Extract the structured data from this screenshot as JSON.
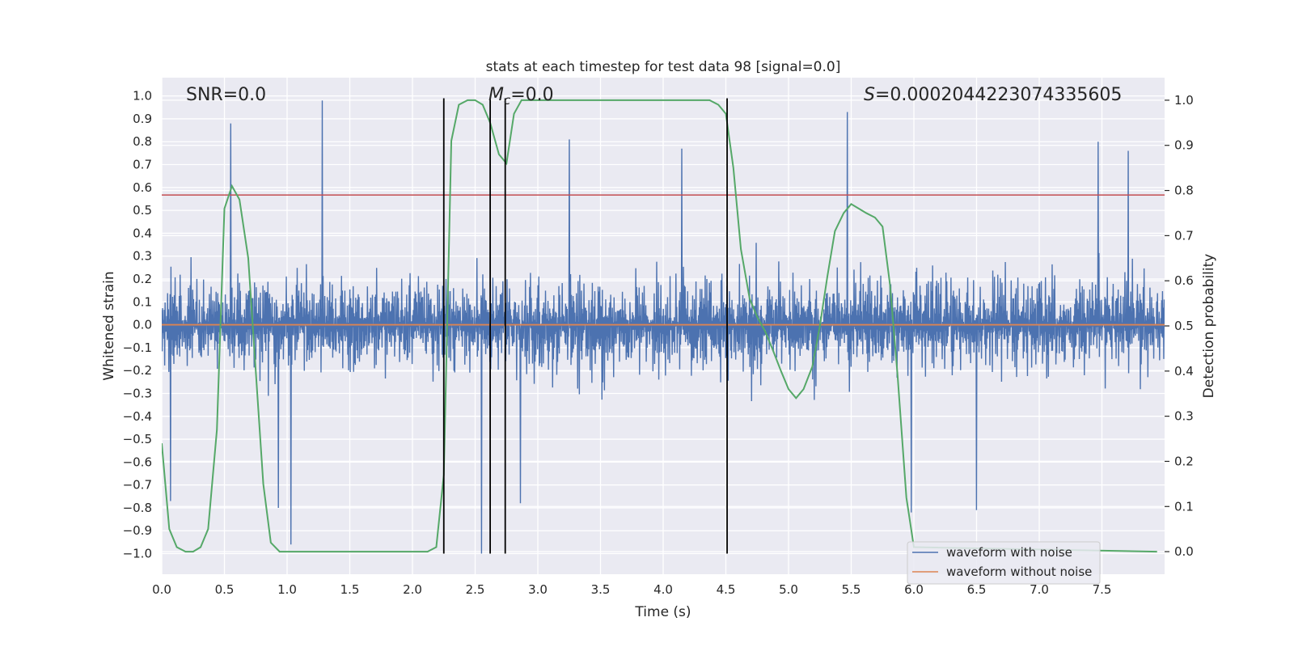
{
  "chart_data": {
    "type": "line",
    "title": "stats at each timestep for test data 98 [signal=0.0]",
    "xlabel": "Time (s)",
    "ylabel": "Whitened strain",
    "y2label": "Detection probability",
    "xlim": [
      0.0,
      8.0
    ],
    "ylim": [
      -1.09,
      1.08
    ],
    "y2lim": [
      -0.05,
      1.05
    ],
    "xticks": [
      0.0,
      0.5,
      1.0,
      1.5,
      2.0,
      2.5,
      3.0,
      3.5,
      4.0,
      4.5,
      5.0,
      5.5,
      6.0,
      6.5,
      7.0,
      7.5
    ],
    "xtick_labels": [
      "0.0",
      "0.5",
      "1.0",
      "1.5",
      "2.0",
      "2.5",
      "3.0",
      "3.5",
      "4.0",
      "4.5",
      "5.0",
      "5.5",
      "6.0",
      "6.5",
      "7.0",
      "7.5"
    ],
    "yticks": [
      1.0,
      0.9,
      0.8,
      0.7,
      0.6,
      0.5,
      0.4,
      0.3,
      0.2,
      0.1,
      0.0,
      -0.1,
      -0.2,
      -0.3,
      -0.4,
      -0.5,
      -0.6,
      -0.7,
      -0.8,
      -0.9,
      -1.0
    ],
    "ytick_labels": [
      "1.0",
      "0.9",
      "0.8",
      "0.7",
      "0.6",
      "0.5",
      "0.4",
      "0.3",
      "0.2",
      "0.1",
      "0.0",
      "−0.1",
      "−0.2",
      "−0.3",
      "−0.4",
      "−0.5",
      "−0.6",
      "−0.7",
      "−0.8",
      "−0.9",
      "−1.0"
    ],
    "y2ticks": [
      1.0,
      0.9,
      0.8,
      0.7,
      0.6,
      0.5,
      0.4,
      0.3,
      0.2,
      0.1,
      0.0
    ],
    "y2tick_labels": [
      "1.0",
      "0.9",
      "0.8",
      "0.7",
      "0.6",
      "0.5",
      "0.4",
      "0.3",
      "0.2",
      "0.1",
      "0.0"
    ],
    "grid": true,
    "legend_position": "bottom-right",
    "annotations": {
      "snr": "SNR=0.0",
      "mc_symbol": "M",
      "mc_sub": "c",
      "mc_value": "=0.0",
      "s_symbol": "S",
      "s_value": "=0.0002044223074335605"
    },
    "series": [
      {
        "name": "waveform with noise",
        "color": "#4c72b0",
        "kind": "noise",
        "envelope": {
          "p95": 0.42,
          "typical": 0.32
        },
        "peaks": [
          {
            "x": 0.55,
            "y": 0.88
          },
          {
            "x": 0.93,
            "y": 0.78
          },
          {
            "x": 1.28,
            "y": 0.98
          },
          {
            "x": 3.25,
            "y": 0.81
          },
          {
            "x": 4.15,
            "y": 0.77
          },
          {
            "x": 5.47,
            "y": 0.93
          },
          {
            "x": 7.47,
            "y": 0.8
          },
          {
            "x": 7.71,
            "y": 0.76
          },
          {
            "x": 1.03,
            "y": -0.96
          },
          {
            "x": 2.55,
            "y": -1.0
          },
          {
            "x": 2.86,
            "y": -0.78
          },
          {
            "x": 5.98,
            "y": -0.82
          },
          {
            "x": 6.5,
            "y": -0.81
          },
          {
            "x": 0.07,
            "y": -0.77
          },
          {
            "x": 0.93,
            "y": -0.8
          }
        ]
      },
      {
        "name": "waveform without noise",
        "color": "#dd8452",
        "kind": "line",
        "x": [
          0.0,
          8.0
        ],
        "y": [
          0.0,
          0.0
        ]
      },
      {
        "name": "detection probability",
        "color": "#55a868",
        "kind": "line",
        "axis": "y2",
        "x": [
          0.0,
          0.06,
          0.12,
          0.19,
          0.25,
          0.31,
          0.37,
          0.44,
          0.5,
          0.56,
          0.62,
          0.69,
          0.75,
          0.81,
          0.87,
          0.94,
          1.0,
          2.0,
          2.12,
          2.19,
          2.25,
          2.31,
          2.37,
          2.44,
          2.5,
          2.56,
          2.62,
          2.69,
          2.75,
          2.81,
          2.87,
          2.94,
          3.0,
          4.0,
          4.37,
          4.44,
          4.5,
          4.56,
          4.62,
          4.69,
          4.75,
          4.81,
          4.87,
          4.94,
          5.0,
          5.06,
          5.12,
          5.19,
          5.25,
          5.31,
          5.37,
          5.44,
          5.5,
          5.56,
          5.62,
          5.69,
          5.75,
          5.81,
          5.87,
          5.94,
          6.0,
          7.94
        ],
        "y": [
          0.24,
          0.05,
          0.01,
          0.0,
          0.0,
          0.01,
          0.05,
          0.27,
          0.76,
          0.81,
          0.78,
          0.65,
          0.4,
          0.15,
          0.02,
          0.0,
          0.0,
          0.0,
          0.0,
          0.01,
          0.17,
          0.91,
          0.99,
          1.0,
          1.0,
          0.99,
          0.95,
          0.88,
          0.86,
          0.97,
          1.0,
          1.0,
          1.0,
          1.0,
          1.0,
          0.99,
          0.97,
          0.85,
          0.67,
          0.56,
          0.52,
          0.49,
          0.45,
          0.4,
          0.36,
          0.34,
          0.36,
          0.41,
          0.5,
          0.61,
          0.71,
          0.75,
          0.77,
          0.76,
          0.75,
          0.74,
          0.72,
          0.59,
          0.39,
          0.12,
          0.01,
          0.0
        ]
      },
      {
        "name": "threshold",
        "color": "#c44e52",
        "kind": "hline",
        "y": 0.79
      }
    ],
    "vlines": {
      "color": "#000000",
      "x": [
        2.25,
        2.62,
        2.74,
        4.51
      ],
      "ymin": -1.0,
      "ymax": 0.99
    }
  }
}
